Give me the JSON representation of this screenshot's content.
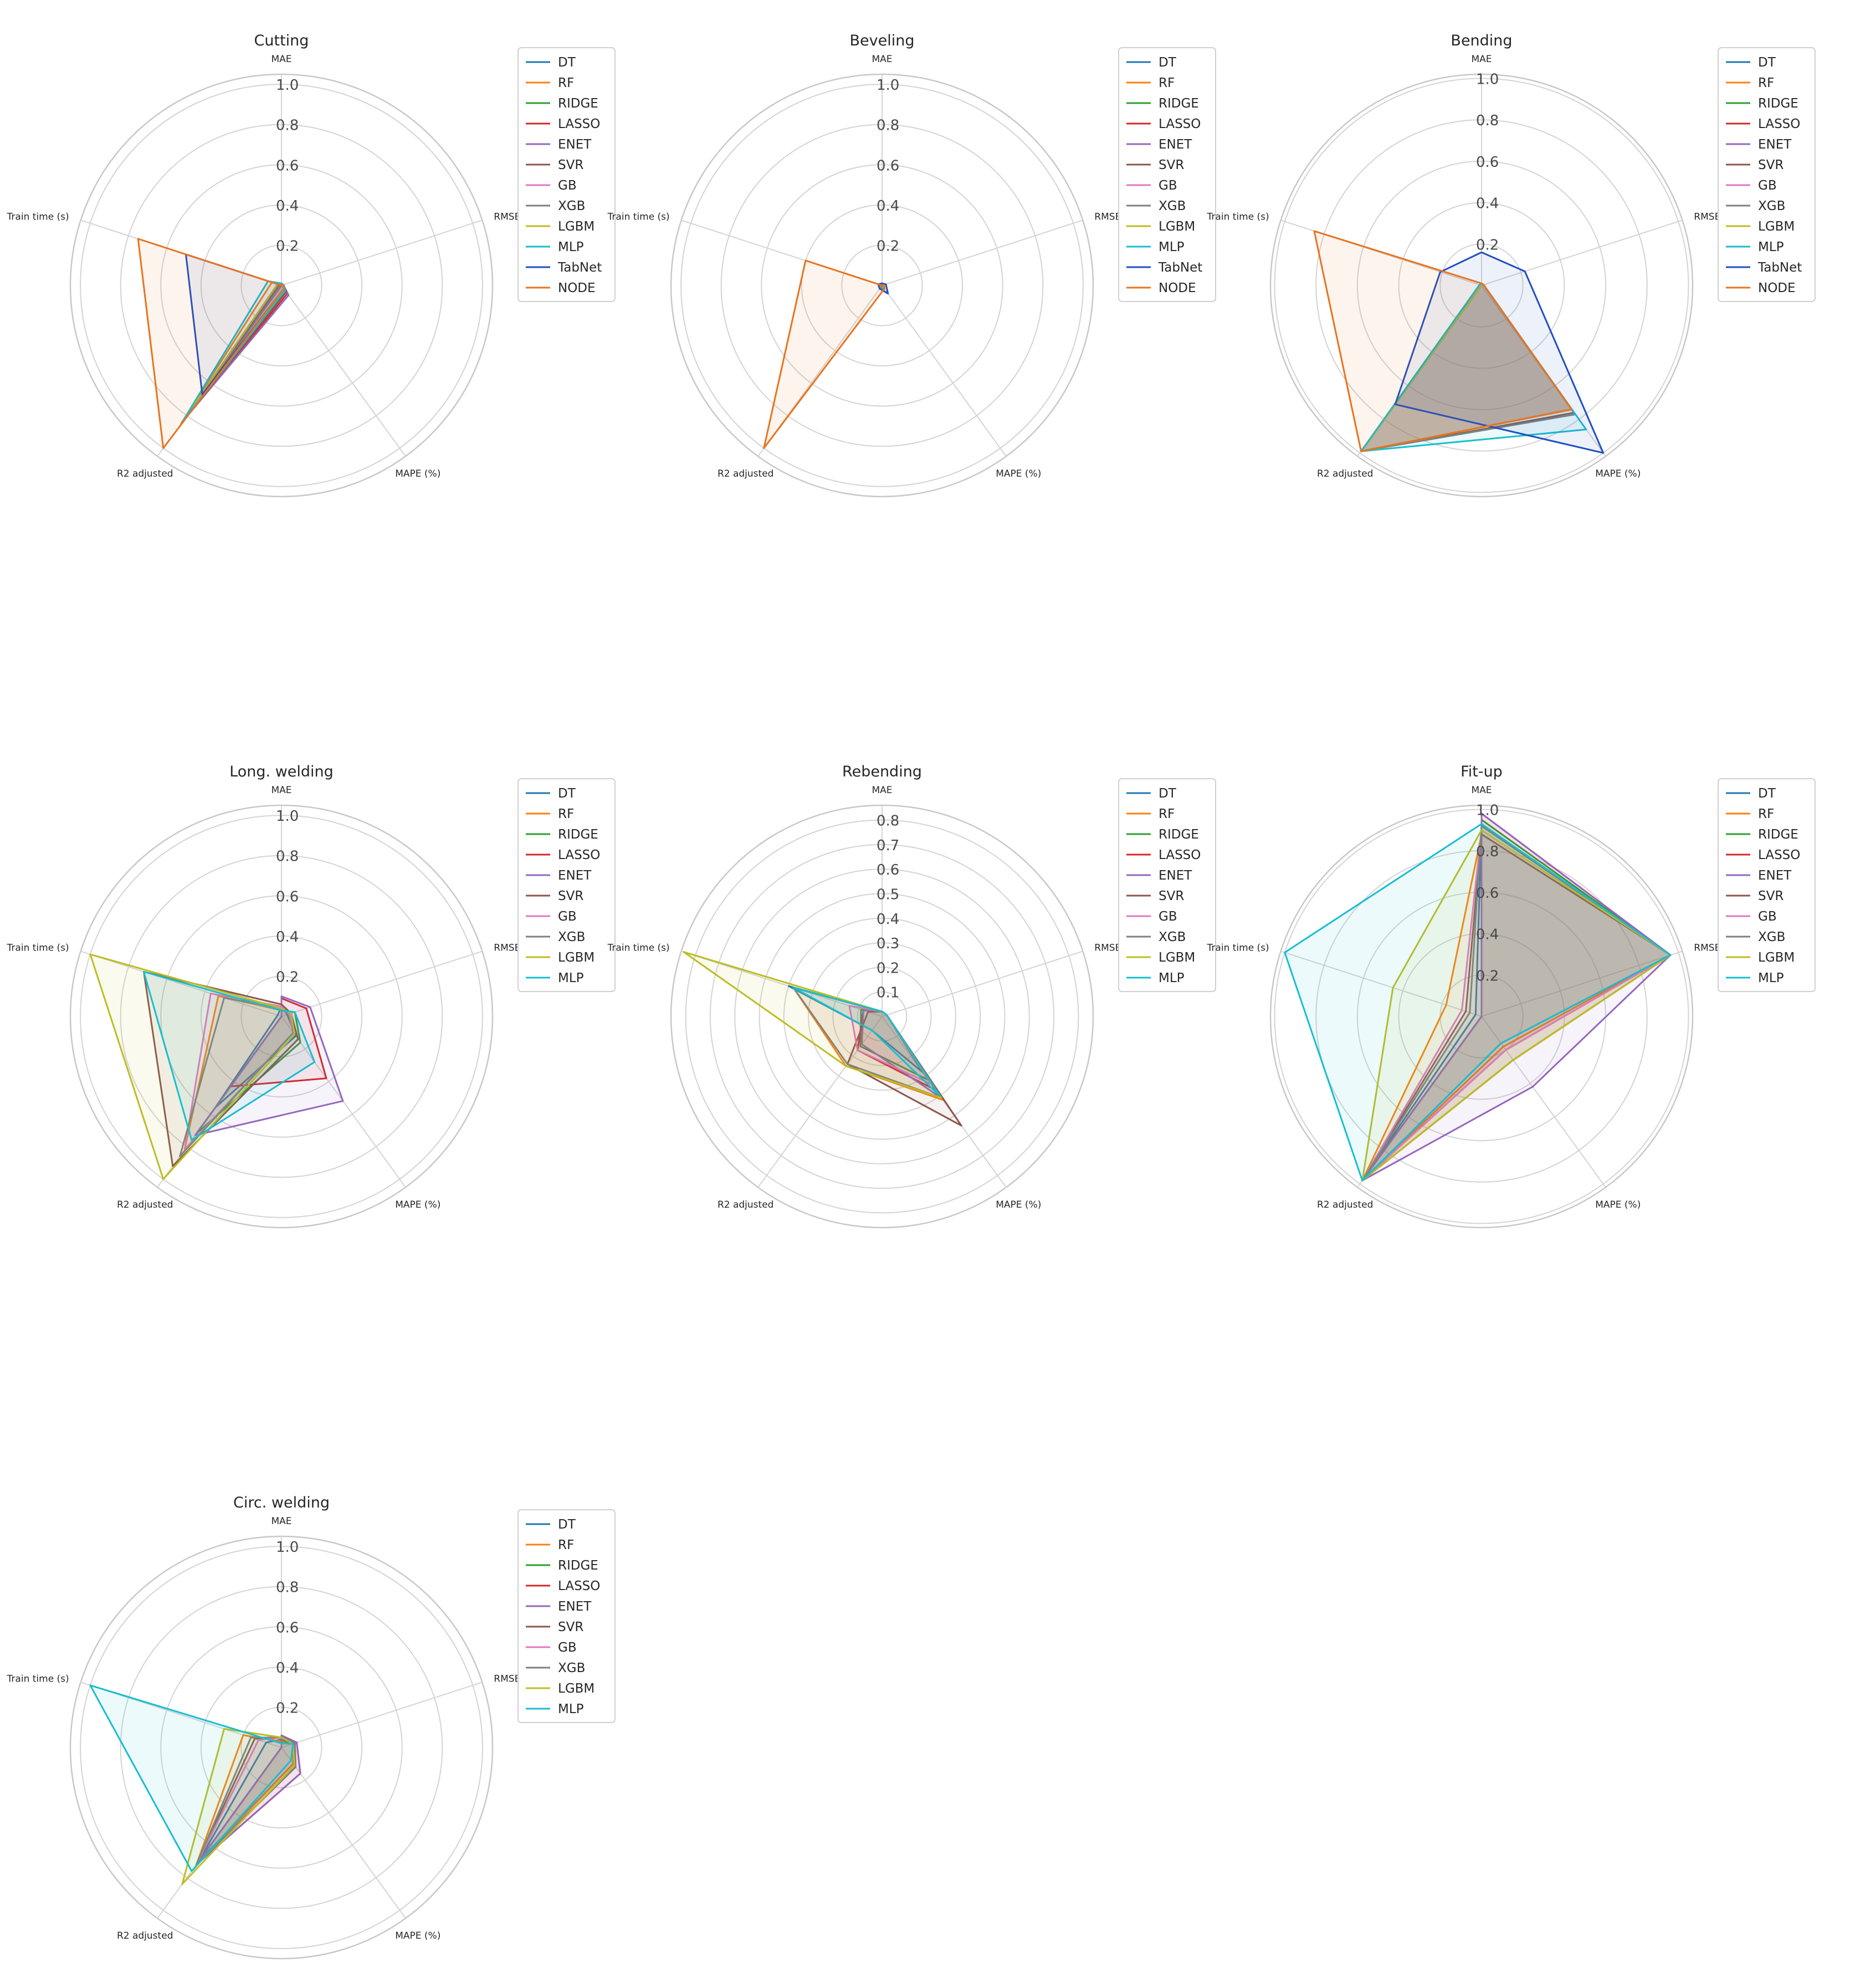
{
  "colors": {
    "DT": "#1f77b4",
    "RF": "#ff7f0e",
    "RIDGE": "#2ca02c",
    "LASSO": "#d62728",
    "ENET": "#9467bd",
    "SVR": "#8c564b",
    "GB": "#e377c2",
    "XGB": "#7f7f7f",
    "LGBM": "#bcbd22",
    "MLP": "#17becf",
    "TabNet": "#1f4fbf",
    "NODE": "#e8731f"
  },
  "chart_data": [
    {
      "type": "radar",
      "title": "Cutting",
      "axes": [
        "MAE",
        "RMSE",
        "MAPE (%)",
        "R2 adjusted",
        "Train time (s)"
      ],
      "r_ticks": [
        "0.2",
        "0.4",
        "0.6",
        "0.8",
        "1.0"
      ],
      "rmax": 1.05,
      "legend": [
        "DT",
        "RF",
        "RIDGE",
        "LASSO",
        "ENET",
        "SVR",
        "GB",
        "XGB",
        "LGBM",
        "MLP",
        "TabNet",
        "NODE"
      ],
      "series": [
        {
          "name": "DT",
          "values": [
            0.01,
            0.01,
            0.03,
            0.84,
            0.02
          ]
        },
        {
          "name": "RF",
          "values": [
            0.01,
            0.01,
            0.03,
            0.85,
            0.05
          ]
        },
        {
          "name": "RIDGE",
          "values": [
            0.01,
            0.01,
            0.04,
            0.84,
            0.0
          ]
        },
        {
          "name": "LASSO",
          "values": [
            0.01,
            0.01,
            0.05,
            0.84,
            0.0
          ]
        },
        {
          "name": "ENET",
          "values": [
            0.01,
            0.01,
            0.06,
            0.84,
            0.0
          ]
        },
        {
          "name": "SVR",
          "values": [
            0.01,
            0.01,
            0.04,
            0.84,
            0.01
          ]
        },
        {
          "name": "GB",
          "values": [
            0.01,
            0.01,
            0.03,
            0.84,
            0.02
          ]
        },
        {
          "name": "XGB",
          "values": [
            0.01,
            0.01,
            0.03,
            0.84,
            0.02
          ]
        },
        {
          "name": "LGBM",
          "values": [
            0.01,
            0.01,
            0.03,
            0.84,
            0.02
          ]
        },
        {
          "name": "MLP",
          "values": [
            0.01,
            0.01,
            0.03,
            0.84,
            0.07
          ]
        },
        {
          "name": "TabNet",
          "values": [
            0.0,
            0.01,
            0.02,
            0.67,
            0.5
          ]
        },
        {
          "name": "NODE",
          "values": [
            0.0,
            0.01,
            0.02,
            1.0,
            0.75
          ]
        }
      ]
    },
    {
      "type": "radar",
      "title": "Beveling",
      "axes": [
        "MAE",
        "RMSE",
        "MAPE (%)",
        "R2 adjusted",
        "Train time (s)"
      ],
      "r_ticks": [
        "0.2",
        "0.4",
        "0.6",
        "0.8",
        "1.0"
      ],
      "rmax": 1.05,
      "legend": [
        "DT",
        "RF",
        "RIDGE",
        "LASSO",
        "ENET",
        "SVR",
        "GB",
        "XGB",
        "LGBM",
        "MLP",
        "TabNet",
        "NODE"
      ],
      "series": [
        {
          "name": "DT",
          "values": [
            0.01,
            0.01,
            0.02,
            0.02,
            0.01
          ]
        },
        {
          "name": "RF",
          "values": [
            0.01,
            0.01,
            0.02,
            0.02,
            0.02
          ]
        },
        {
          "name": "RIDGE",
          "values": [
            0.01,
            0.01,
            0.02,
            0.02,
            0.0
          ]
        },
        {
          "name": "LASSO",
          "values": [
            0.01,
            0.01,
            0.02,
            0.02,
            0.0
          ]
        },
        {
          "name": "ENET",
          "values": [
            0.01,
            0.01,
            0.02,
            0.02,
            0.0
          ]
        },
        {
          "name": "SVR",
          "values": [
            0.01,
            0.01,
            0.02,
            0.02,
            0.01
          ]
        },
        {
          "name": "GB",
          "values": [
            0.01,
            0.01,
            0.02,
            0.02,
            0.01
          ]
        },
        {
          "name": "XGB",
          "values": [
            0.01,
            0.01,
            0.02,
            0.02,
            0.01
          ]
        },
        {
          "name": "LGBM",
          "values": [
            0.01,
            0.01,
            0.02,
            0.02,
            0.01
          ]
        },
        {
          "name": "MLP",
          "values": [
            0.01,
            0.01,
            0.02,
            0.02,
            0.02
          ]
        },
        {
          "name": "TabNet",
          "values": [
            0.01,
            0.02,
            0.05,
            0.02,
            0.02
          ]
        },
        {
          "name": "NODE",
          "values": [
            0.0,
            0.01,
            0.02,
            1.0,
            0.4
          ]
        }
      ]
    },
    {
      "type": "radar",
      "title": "Bending",
      "axes": [
        "MAE",
        "RMSE",
        "MAPE (%)",
        "R2 adjusted",
        "Train time (s)"
      ],
      "r_ticks": [
        "0.2",
        "0.4",
        "0.6",
        "0.8",
        "1.0"
      ],
      "rmax": 1.02,
      "legend": [
        "DT",
        "RF",
        "RIDGE",
        "LASSO",
        "ENET",
        "SVR",
        "GB",
        "XGB",
        "LGBM",
        "MLP",
        "TabNet",
        "NODE"
      ],
      "series": [
        {
          "name": "DT",
          "values": [
            0.01,
            0.01,
            0.74,
            0.99,
            0.0
          ]
        },
        {
          "name": "RF",
          "values": [
            0.01,
            0.01,
            0.74,
            0.99,
            0.01
          ]
        },
        {
          "name": "RIDGE",
          "values": [
            0.01,
            0.01,
            0.74,
            0.99,
            0.0
          ]
        },
        {
          "name": "LASSO",
          "values": [
            0.01,
            0.01,
            0.74,
            0.99,
            0.0
          ]
        },
        {
          "name": "ENET",
          "values": [
            0.01,
            0.01,
            0.74,
            0.99,
            0.0
          ]
        },
        {
          "name": "SVR",
          "values": [
            0.01,
            0.01,
            0.76,
            0.99,
            0.0
          ]
        },
        {
          "name": "GB",
          "values": [
            0.01,
            0.01,
            0.74,
            0.99,
            0.0
          ]
        },
        {
          "name": "XGB",
          "values": [
            0.01,
            0.01,
            0.77,
            0.99,
            0.0
          ]
        },
        {
          "name": "LGBM",
          "values": [
            0.01,
            0.01,
            0.74,
            0.99,
            0.0
          ]
        },
        {
          "name": "MLP",
          "values": [
            0.01,
            0.01,
            0.86,
            0.99,
            0.01
          ]
        },
        {
          "name": "TabNet",
          "values": [
            0.16,
            0.22,
            1.0,
            0.71,
            0.21
          ]
        },
        {
          "name": "NODE",
          "values": [
            0.01,
            0.01,
            0.74,
            0.99,
            0.85
          ]
        }
      ]
    },
    {
      "type": "radar",
      "title": "Long. welding",
      "axes": [
        "MAE",
        "RMSE",
        "MAPE (%)",
        "R2 adjusted",
        "Train time (s)"
      ],
      "r_ticks": [
        "0.2",
        "0.4",
        "0.6",
        "0.8",
        "1.0"
      ],
      "rmax": 1.05,
      "legend": [
        "DT",
        "RF",
        "RIDGE",
        "LASSO",
        "ENET",
        "SVR",
        "GB",
        "XGB",
        "LGBM",
        "MLP"
      ],
      "series": [
        {
          "name": "DT",
          "values": [
            0.05,
            0.03,
            0.12,
            0.56,
            0.02
          ]
        },
        {
          "name": "RF",
          "values": [
            0.03,
            0.05,
            0.1,
            0.82,
            0.33
          ]
        },
        {
          "name": "RIDGE",
          "values": [
            0.03,
            0.07,
            0.16,
            0.72,
            0.0
          ]
        },
        {
          "name": "LASSO",
          "values": [
            0.09,
            0.13,
            0.38,
            0.43,
            0.0
          ]
        },
        {
          "name": "ENET",
          "values": [
            0.1,
            0.15,
            0.52,
            0.73,
            0.0
          ]
        },
        {
          "name": "SVR",
          "values": [
            0.06,
            0.05,
            0.14,
            0.92,
            0.72
          ]
        },
        {
          "name": "GB",
          "values": [
            0.05,
            0.04,
            0.1,
            0.82,
            0.37
          ]
        },
        {
          "name": "XGB",
          "values": [
            0.04,
            0.05,
            0.1,
            0.86,
            0.3
          ]
        },
        {
          "name": "LGBM",
          "values": [
            0.04,
            0.05,
            0.11,
            1.0,
            1.0
          ]
        },
        {
          "name": "MLP",
          "values": [
            0.03,
            0.07,
            0.28,
            0.76,
            0.72
          ]
        }
      ]
    },
    {
      "type": "radar",
      "title": "Rebending",
      "axes": [
        "MAE",
        "RMSE",
        "MAPE (%)",
        "R2 adjusted",
        "Train time (s)"
      ],
      "r_ticks": [
        "0.1",
        "0.2",
        "0.3",
        "0.4",
        "0.5",
        "0.6",
        "0.7",
        "0.8"
      ],
      "rmax": 0.86,
      "legend": [
        "DT",
        "RF",
        "RIDGE",
        "LASSO",
        "ENET",
        "SVR",
        "GB",
        "XGB",
        "LGBM",
        "MLP"
      ],
      "series": [
        {
          "name": "DT",
          "values": [
            0.02,
            0.02,
            0.28,
            0.07,
            0.4
          ]
        },
        {
          "name": "RF",
          "values": [
            0.02,
            0.02,
            0.42,
            0.25,
            0.38
          ]
        },
        {
          "name": "RIDGE",
          "values": [
            0.02,
            0.02,
            0.32,
            0.15,
            0.09
          ]
        },
        {
          "name": "LASSO",
          "values": [
            0.02,
            0.02,
            0.37,
            0.17,
            0.08
          ]
        },
        {
          "name": "ENET",
          "values": [
            0.02,
            0.02,
            0.41,
            0.14,
            0.08
          ]
        },
        {
          "name": "SVR",
          "values": [
            0.02,
            0.02,
            0.55,
            0.24,
            0.06
          ]
        },
        {
          "name": "GB",
          "values": [
            0.02,
            0.02,
            0.34,
            0.17,
            0.14
          ]
        },
        {
          "name": "XGB",
          "values": [
            0.02,
            0.02,
            0.41,
            0.24,
            0.38
          ]
        },
        {
          "name": "LGBM",
          "values": [
            0.02,
            0.02,
            0.41,
            0.25,
            0.85
          ]
        },
        {
          "name": "MLP",
          "values": [
            0.02,
            0.02,
            0.4,
            0.07,
            0.38
          ]
        }
      ]
    },
    {
      "type": "radar",
      "title": "Fit-up",
      "axes": [
        "MAE",
        "RMSE",
        "MAPE (%)",
        "R2 adjusted",
        "Train time (s)"
      ],
      "r_ticks": [
        "0.2",
        "0.4",
        "0.6",
        "0.8",
        "1.0"
      ],
      "rmax": 1.02,
      "legend": [
        "DT",
        "RF",
        "RIDGE",
        "LASSO",
        "ENET",
        "SVR",
        "GB",
        "XGB",
        "LGBM",
        "MLP"
      ],
      "series": [
        {
          "name": "DT",
          "values": [
            0.92,
            0.96,
            0.2,
            0.98,
            0.03
          ]
        },
        {
          "name": "RF",
          "values": [
            0.88,
            0.96,
            0.18,
            0.98,
            0.18
          ]
        },
        {
          "name": "RIDGE",
          "values": [
            0.95,
            0.96,
            0.26,
            0.98,
            0.0
          ]
        },
        {
          "name": "LASSO",
          "values": [
            0.98,
            0.96,
            0.26,
            0.98,
            0.0
          ]
        },
        {
          "name": "ENET",
          "values": [
            0.98,
            0.96,
            0.42,
            0.98,
            0.0
          ]
        },
        {
          "name": "SVR",
          "values": [
            0.88,
            0.96,
            0.2,
            0.98,
            0.08
          ]
        },
        {
          "name": "GB",
          "values": [
            0.9,
            0.96,
            0.2,
            0.98,
            0.1
          ]
        },
        {
          "name": "XGB",
          "values": [
            0.92,
            0.96,
            0.16,
            0.98,
            0.06
          ]
        },
        {
          "name": "LGBM",
          "values": [
            0.9,
            0.96,
            0.26,
            0.98,
            0.45
          ]
        },
        {
          "name": "MLP",
          "values": [
            0.93,
            0.96,
            0.16,
            0.98,
            1.0
          ]
        }
      ]
    },
    {
      "type": "radar",
      "title": "Circ. welding",
      "axes": [
        "MAE",
        "RMSE",
        "MAPE (%)",
        "R2 adjusted",
        "Train time (s)"
      ],
      "r_ticks": [
        "0.2",
        "0.4",
        "0.6",
        "0.8",
        "1.0"
      ],
      "rmax": 1.05,
      "legend": [
        "DT",
        "RF",
        "RIDGE",
        "LASSO",
        "ENET",
        "SVR",
        "GB",
        "XGB",
        "LGBM",
        "MLP"
      ],
      "series": [
        {
          "name": "DT",
          "values": [
            0.04,
            0.06,
            0.1,
            0.7,
            0.08
          ]
        },
        {
          "name": "RF",
          "values": [
            0.03,
            0.06,
            0.1,
            0.72,
            0.2
          ]
        },
        {
          "name": "RIDGE",
          "values": [
            0.04,
            0.06,
            0.12,
            0.72,
            0.0
          ]
        },
        {
          "name": "LASSO",
          "values": [
            0.06,
            0.08,
            0.16,
            0.72,
            0.0
          ]
        },
        {
          "name": "ENET",
          "values": [
            0.06,
            0.08,
            0.16,
            0.72,
            0.0
          ]
        },
        {
          "name": "SVR",
          "values": [
            0.05,
            0.07,
            0.12,
            0.72,
            0.14
          ]
        },
        {
          "name": "GB",
          "values": [
            0.05,
            0.07,
            0.12,
            0.72,
            0.12
          ]
        },
        {
          "name": "XGB",
          "values": [
            0.05,
            0.07,
            0.12,
            0.72,
            0.16
          ]
        },
        {
          "name": "LGBM",
          "values": [
            0.05,
            0.06,
            0.11,
            0.84,
            0.3
          ]
        },
        {
          "name": "MLP",
          "values": [
            0.02,
            0.06,
            0.08,
            0.76,
            1.0
          ]
        }
      ]
    }
  ]
}
